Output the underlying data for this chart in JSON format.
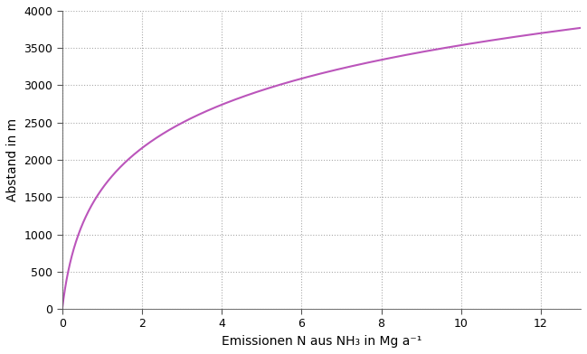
{
  "xlabel": "Emissionen N aus NH₃ in Mg a⁻¹",
  "ylabel": "Abstand in m",
  "xlim": [
    0,
    13
  ],
  "ylim": [
    0,
    4000
  ],
  "xticks": [
    0,
    2,
    4,
    6,
    8,
    10,
    12
  ],
  "yticks": [
    0,
    500,
    1000,
    1500,
    2000,
    2500,
    3000,
    3500,
    4000
  ],
  "curve_color": "#bb55bb",
  "curve_log_a": 900.0,
  "curve_log_k": 5.0,
  "grid_color": "#aaaaaa",
  "grid_linestyle": "dotted",
  "background_color": "#ffffff",
  "xlabel_fontsize": 10,
  "ylabel_fontsize": 10,
  "tick_fontsize": 9,
  "line_width": 1.5,
  "spine_color": "#555555",
  "tick_color": "#555555"
}
